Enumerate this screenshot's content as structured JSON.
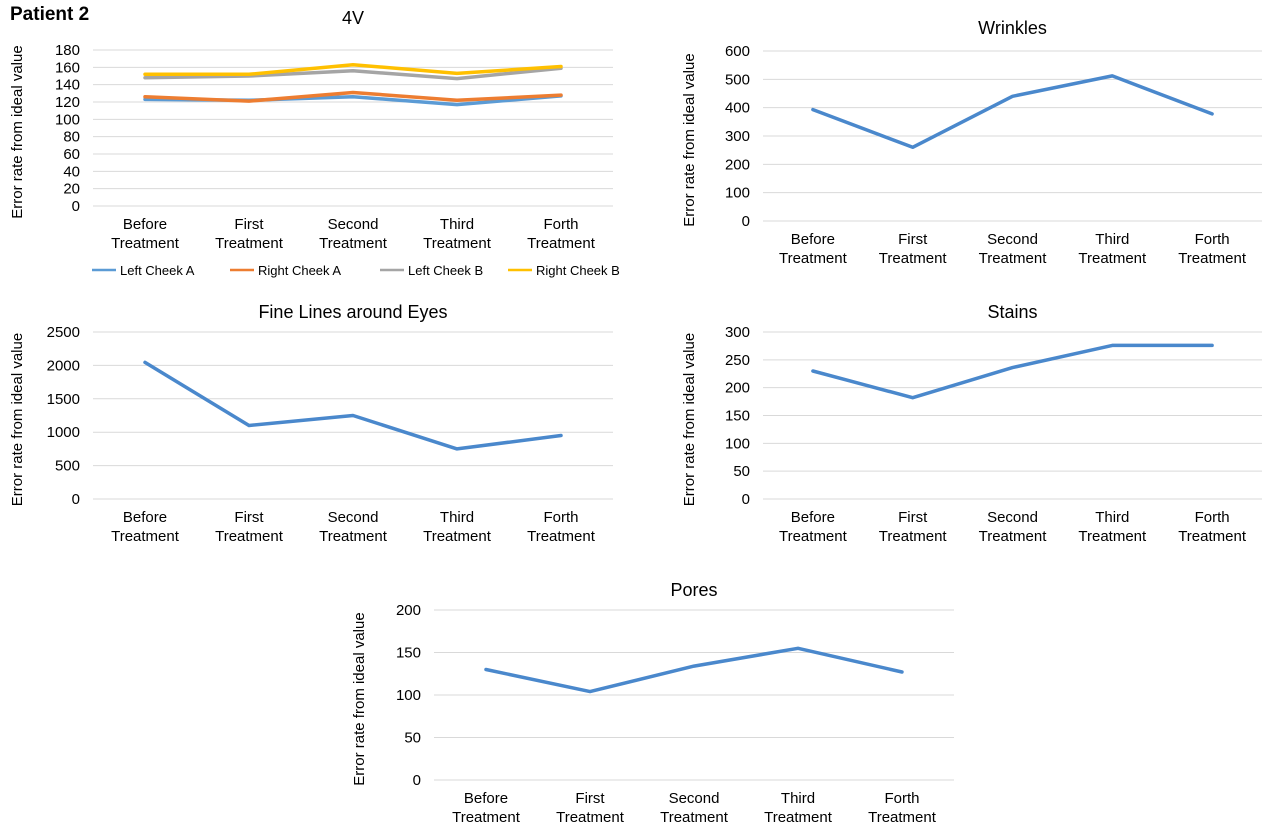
{
  "page": {
    "title": "Patient 2"
  },
  "chart_data": [
    {
      "id": "4v",
      "type": "line",
      "title": "4V",
      "ylabel": "Error rate from ideal value",
      "xlabel": "",
      "categories": [
        [
          "Before",
          "Treatment"
        ],
        [
          "First",
          "Treatment"
        ],
        [
          "Second",
          "Treatment"
        ],
        [
          "Third",
          "Treatment"
        ],
        [
          "Forth",
          "Treatment"
        ]
      ],
      "yticks": [
        0,
        20,
        40,
        60,
        80,
        100,
        120,
        140,
        160,
        180
      ],
      "ylim": [
        0,
        180
      ],
      "grid": true,
      "legend": "bottom",
      "series": [
        {
          "name": "Left Cheek A",
          "color": "#5b9bd5",
          "values": [
            123,
            122,
            126,
            117,
            127
          ]
        },
        {
          "name": "Right Cheek A",
          "color": "#ed7d31",
          "values": [
            126,
            121,
            131,
            122,
            128
          ]
        },
        {
          "name": "Left Cheek B",
          "color": "#a5a5a5",
          "values": [
            148,
            150,
            156,
            147,
            159
          ]
        },
        {
          "name": "Right Cheek B",
          "color": "#ffc000",
          "values": [
            152,
            152,
            163,
            153,
            161
          ]
        }
      ]
    },
    {
      "id": "wrinkles",
      "type": "line",
      "title": "Wrinkles",
      "ylabel": "Error rate from ideal value",
      "xlabel": "",
      "categories": [
        [
          "Before",
          "Treatment"
        ],
        [
          "First",
          "Treatment"
        ],
        [
          "Second",
          "Treatment"
        ],
        [
          "Third",
          "Treatment"
        ],
        [
          "Forth",
          "Treatment"
        ]
      ],
      "yticks": [
        0,
        100,
        200,
        300,
        400,
        500,
        600
      ],
      "ylim": [
        0,
        600
      ],
      "grid": true,
      "series": [
        {
          "color": "#4a88cc",
          "values": [
            393,
            260,
            440,
            512,
            378
          ]
        }
      ]
    },
    {
      "id": "fine-lines",
      "type": "line",
      "title": "Fine Lines around Eyes",
      "ylabel": "Error rate from ideal value",
      "xlabel": "",
      "categories": [
        [
          "Before",
          "Treatment"
        ],
        [
          "First",
          "Treatment"
        ],
        [
          "Second",
          "Treatment"
        ],
        [
          "Third",
          "Treatment"
        ],
        [
          "Forth",
          "Treatment"
        ]
      ],
      "yticks": [
        0,
        500,
        1000,
        1500,
        2000,
        2500
      ],
      "ylim": [
        0,
        2500
      ],
      "grid": true,
      "series": [
        {
          "color": "#4a88cc",
          "values": [
            2045,
            1100,
            1250,
            750,
            950
          ]
        }
      ]
    },
    {
      "id": "stains",
      "type": "line",
      "title": "Stains",
      "ylabel": "Error rate from ideal value",
      "xlabel": "",
      "categories": [
        [
          "Before",
          "Treatment"
        ],
        [
          "First",
          "Treatment"
        ],
        [
          "Second",
          "Treatment"
        ],
        [
          "Third",
          "Treatment"
        ],
        [
          "Forth",
          "Treatment"
        ]
      ],
      "yticks": [
        0,
        50,
        100,
        150,
        200,
        250,
        300
      ],
      "ylim": [
        0,
        300
      ],
      "grid": true,
      "series": [
        {
          "color": "#4a88cc",
          "values": [
            230,
            182,
            236,
            276,
            276
          ]
        }
      ]
    },
    {
      "id": "pores",
      "type": "line",
      "title": "Pores",
      "ylabel": "Error rate from ideal value",
      "xlabel": "",
      "categories": [
        [
          "Before",
          "Treatment"
        ],
        [
          "First",
          "Treatment"
        ],
        [
          "Second",
          "Treatment"
        ],
        [
          "Third",
          "Treatment"
        ],
        [
          "Forth",
          "Treatment"
        ]
      ],
      "yticks": [
        0,
        50,
        100,
        150,
        200
      ],
      "ylim": [
        0,
        200
      ],
      "grid": true,
      "series": [
        {
          "color": "#4a88cc",
          "values": [
            130,
            104,
            134,
            155,
            127
          ]
        }
      ]
    }
  ]
}
